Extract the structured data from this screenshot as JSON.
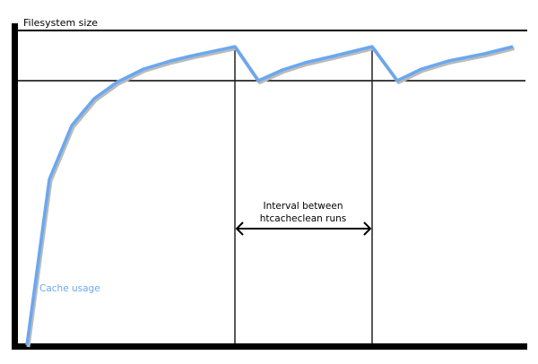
{
  "diagram": {
    "y_axis_label": "Filesystem size",
    "interval_label_line1": "Interval between",
    "interval_label_line2": "htcacheclean runs",
    "series_label": "Cache usage",
    "colors": {
      "cache_line": "#6aa8f0",
      "axes": "#000000",
      "series_label": "#6aa8f0"
    }
  }
}
